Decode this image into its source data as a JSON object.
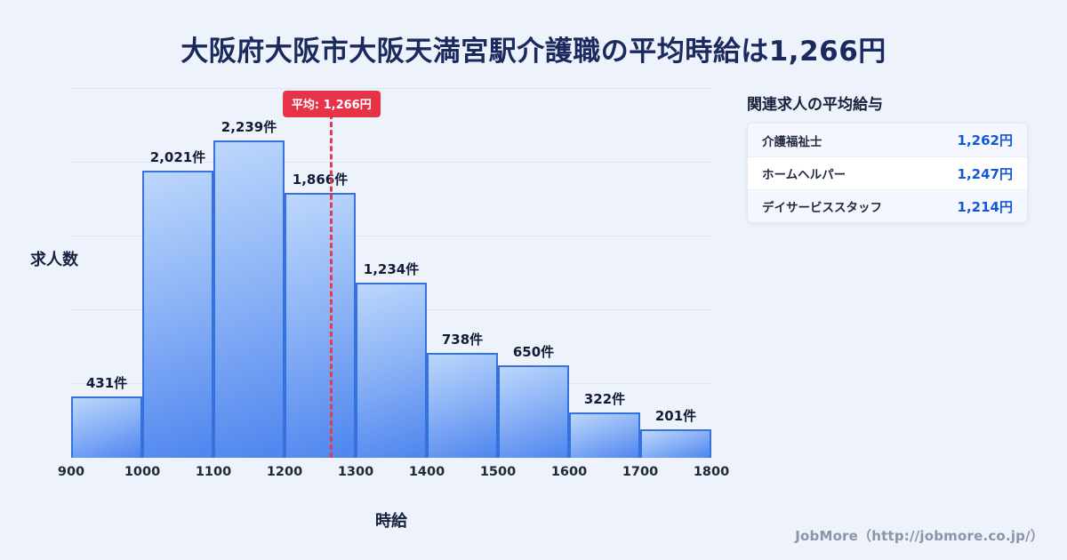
{
  "page": {
    "title": "大阪府大阪市大阪天満宮駅介護職の平均時給は1,266円",
    "footer": "JobMore（http://jobmore.co.jp/）",
    "background_color": "#edf2fb",
    "title_color": "#1b2a5e",
    "accent_blue": "#1556d6",
    "bar_fill_top": "#bdd7fc",
    "bar_fill_bottom": "#4e85ee",
    "bar_border": "#3672dd",
    "average_red": "#e63347"
  },
  "chart_data": {
    "type": "bar",
    "subtype": "histogram",
    "title": "大阪府大阪市大阪天満宮駅介護職の平均時給は1,266円",
    "xlabel": "時給",
    "ylabel": "求人数",
    "bin_edges": [
      900,
      1000,
      1100,
      1200,
      1300,
      1400,
      1500,
      1600,
      1700,
      1800
    ],
    "values": [
      431,
      2021,
      2239,
      1866,
      1234,
      738,
      650,
      322,
      201
    ],
    "bar_labels": [
      "431件",
      "2,021件",
      "2,239件",
      "1,866件",
      "1,234件",
      "738件",
      "650件",
      "322件",
      "201件"
    ],
    "tick_labels": [
      "900",
      "1000",
      "1100",
      "1200",
      "1300",
      "1400",
      "1500",
      "1600",
      "1700",
      "1800"
    ],
    "average": {
      "value": 1266,
      "label": "平均: 1,266円"
    },
    "ylim": [
      0,
      2600
    ],
    "grid": true,
    "grid_values": [
      520,
      1040,
      1560,
      2080,
      2600
    ],
    "legend_position": "none"
  },
  "side_panel": {
    "heading": "関連求人の平均給与",
    "rows": [
      {
        "label": "介護福祉士",
        "value": "1,262円"
      },
      {
        "label": "ホームヘルパー",
        "value": "1,247円"
      },
      {
        "label": "デイサービススタッフ",
        "value": "1,214円"
      }
    ]
  }
}
